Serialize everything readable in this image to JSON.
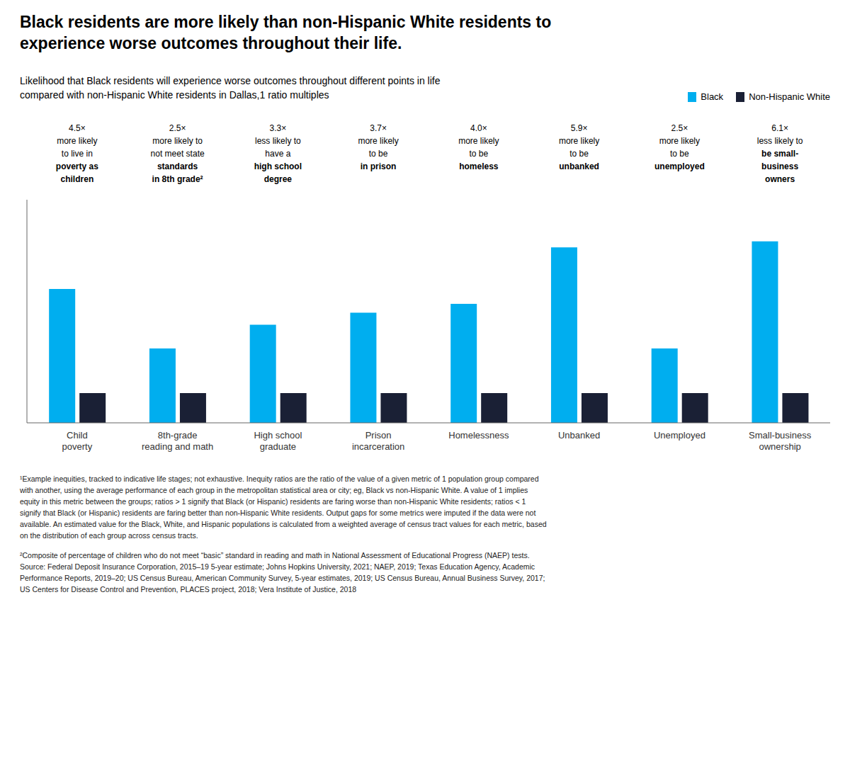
{
  "chart_data": {
    "type": "bar",
    "title": "Black residents are more likely than non-Hispanic White residents to\nexperience worse outcomes throughout their life.",
    "subtitle": "Likelihood that Black residents will experience worse outcomes throughout different points in life\ncompared with non-Hispanic White residents in Dallas,1 ratio multiples",
    "categories": [
      "Child\npoverty",
      "8th-grade\nreading and math",
      "High school\ngraduate",
      "Prison\nincarceration",
      "Homelessness",
      "Unbanked",
      "Unemployed",
      "Small-business\nownership"
    ],
    "series": [
      {
        "name": "Black",
        "color": "#00AEEF",
        "values": [
          4.5,
          2.5,
          3.3,
          3.7,
          4.0,
          5.9,
          2.5,
          6.1
        ]
      },
      {
        "name": "Non-Hispanic White",
        "color": "#1A2035",
        "values": [
          1.0,
          1.0,
          1.0,
          1.0,
          1.0,
          1.0,
          1.0,
          1.0
        ]
      }
    ],
    "ylim": [
      0,
      7.5
    ],
    "tick_labels": "x",
    "grid": false,
    "legend": "top right",
    "annotations": [
      [
        {
          "text": "4.5×",
          "bold": false
        },
        {
          "text": "more likely",
          "bold": false
        },
        {
          "text": "to live in",
          "bold": false
        },
        {
          "text": "poverty as",
          "bold": true
        },
        {
          "text": "children",
          "bold": true
        }
      ],
      [
        {
          "text": "2.5×",
          "bold": false
        },
        {
          "text": "more likely to",
          "bold": false
        },
        {
          "text": "not meet state",
          "bold": false
        },
        {
          "text": "standards",
          "bold": true
        },
        {
          "text": "in 8th grade²",
          "bold": true
        }
      ],
      [
        {
          "text": "3.3×",
          "bold": false
        },
        {
          "text": "less likely to",
          "bold": false
        },
        {
          "text": "have a",
          "bold": false
        },
        {
          "text": "high school",
          "bold": true
        },
        {
          "text": "degree",
          "bold": true
        }
      ],
      [
        {
          "text": "3.7×",
          "bold": false
        },
        {
          "text": "more likely",
          "bold": false
        },
        {
          "text": "to be",
          "bold": false
        },
        {
          "text": "in prison",
          "bold": true
        }
      ],
      [
        {
          "text": "4.0×",
          "bold": false
        },
        {
          "text": "more likely",
          "bold": false
        },
        {
          "text": "to be",
          "bold": false
        },
        {
          "text": "homeless",
          "bold": true
        }
      ],
      [
        {
          "text": "5.9×",
          "bold": false
        },
        {
          "text": "more likely",
          "bold": false
        },
        {
          "text": "to be",
          "bold": false
        },
        {
          "text": "unbanked",
          "bold": true
        }
      ],
      [
        {
          "text": "2.5×",
          "bold": false
        },
        {
          "text": "more likely",
          "bold": false
        },
        {
          "text": "to be",
          "bold": false
        },
        {
          "text": "unemployed",
          "bold": true
        }
      ],
      [
        {
          "text": "6.1×",
          "bold": false
        },
        {
          "text": "less likely to",
          "bold": false
        },
        {
          "text": "be small-",
          "bold": true
        },
        {
          "text": "business",
          "bold": true
        },
        {
          "text": "owners",
          "bold": true
        }
      ]
    ],
    "footnotes": [
      "¹Example inequities, tracked to indicative life stages; not exhaustive. Inequity ratios are the ratio of the value of a given metric of 1 population group compared\nwith another, using the average performance of each group in the metropolitan statistical area or city; eg, Black vs non-Hispanic White. A value of 1 implies\nequity in this metric between the groups; ratios > 1 signify that Black (or Hispanic) residents are faring worse than non-Hispanic White residents; ratios < 1\nsignify that Black (or Hispanic) residents are faring better than non-Hispanic White residents. Output gaps for some metrics were imputed if the data were not\navailable. An estimated value for the Black, White, and Hispanic populations is calculated from a weighted average of census tract values for each metric, based\non the distribution of each group across census tracts.",
      "²Composite of percentage of children who do not meet “basic” standard in reading and math in National Assessment of Educational Progress (NAEP) tests.\nSource: Federal Deposit Insurance Corporation, 2015–19 5-year estimate; Johns Hopkins University, 2021; NAEP, 2019; Texas Education Agency, Academic\nPerformance Reports, 2019–20; US Census Bureau, American Community Survey, 5-year estimates, 2019; US Census Bureau, Annual Business Survey, 2017;\nUS Centers for Disease Control and Prevention, PLACES project, 2018; Vera Institute of Justice, 2018"
    ]
  }
}
